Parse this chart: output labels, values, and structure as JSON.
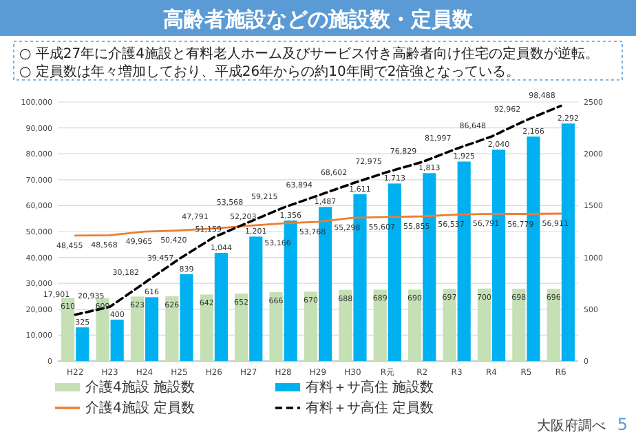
{
  "chart_data": {
    "type": "bar",
    "title": "高齢者施設などの施設数・定員数",
    "annotations": [
      "○ 平成27年に介護4施設と有料老人ホーム及びサービス付き高齢者向け住宅の定員数が逆転。",
      "○ 定員数は年々増加しており、平成26年からの約10年間で2倍強となっている。",
      "大阪府調べ",
      "5"
    ],
    "categories": [
      "H22",
      "H23",
      "H24",
      "H25",
      "H26",
      "H27",
      "H28",
      "H29",
      "H30",
      "R元",
      "R2",
      "R3",
      "R4",
      "R5",
      "R6"
    ],
    "series": [
      {
        "name": "介護4施設 施設数",
        "axis": "y2",
        "color": "#c5e0b4",
        "values": [
          610,
          609,
          623,
          626,
          642,
          652,
          666,
          670,
          688,
          689,
          690,
          697,
          700,
          698,
          696
        ],
        "value_labels": [
          "610",
          "609",
          "623",
          "626",
          "642",
          "652",
          "666",
          "670",
          "688",
          "689",
          "690",
          "697",
          "700",
          "698",
          "696"
        ]
      },
      {
        "name": "有料＋サ高住 施設数",
        "axis": "y2",
        "color": "#00b0f0",
        "values": [
          325,
          400,
          616,
          839,
          1044,
          1201,
          1356,
          1487,
          1611,
          1713,
          1813,
          1925,
          2040,
          2166,
          2292
        ],
        "value_labels": [
          "325",
          "400",
          "616",
          "839",
          "1,044",
          "1,201",
          "1,356",
          "1,487",
          "1,611",
          "1,713",
          "1,813",
          "1,925",
          "2,040",
          "2,166",
          "2,292"
        ]
      },
      {
        "name": "介護4施設 定員数",
        "type": "line",
        "color": "#ed7d31",
        "line_style": "solid",
        "values": [
          48455,
          48568,
          49965,
          50420,
          51159,
          52203,
          53166,
          53768,
          55298,
          55607,
          55855,
          56537,
          56791,
          56779,
          56911
        ],
        "value_labels": [
          "48,455",
          "48,568",
          "49,965",
          "50,420",
          "51,159",
          "52,203",
          "53,166",
          "53,768",
          "55,298",
          "55,607",
          "55,855",
          "56,537",
          "56,791",
          "56,779",
          "56,911"
        ]
      },
      {
        "name": "有料＋サ高住 定員数",
        "type": "line",
        "color": "#000000",
        "line_style": "dashed",
        "values": [
          17901,
          20935,
          30182,
          39457,
          47791,
          53568,
          59215,
          63894,
          68602,
          72975,
          76829,
          81997,
          86648,
          92962,
          98488
        ],
        "value_labels": [
          "17,901",
          "20,935",
          "30,182",
          "39,457",
          "47,791",
          "53,568",
          "59,215",
          "63,894",
          "68,602",
          "72,975",
          "76,829",
          "81,997",
          "86,648",
          "92,962",
          "98,488"
        ]
      }
    ],
    "ylim": [
      0,
      100000
    ],
    "yticks": [
      0,
      {
        "value": 10000,
        "label": "10,000"
      },
      {
        "value": 20000,
        "label": "20,000"
      },
      {
        "value": 30000,
        "label": "30,000"
      },
      {
        "value": 40000,
        "label": "40,000"
      },
      {
        "value": 50000,
        "label": "50,000"
      },
      {
        "value": 60000,
        "label": "60,000"
      },
      {
        "value": 70000,
        "label": "70,000"
      },
      {
        "value": 80000,
        "label": "80,000"
      },
      {
        "value": 90000,
        "label": "90,000"
      },
      {
        "value": 100000,
        "label": "100,000"
      }
    ],
    "y2lim": [
      0,
      2500
    ],
    "y2ticks": [
      0,
      500,
      1000,
      1500,
      2000,
      2500
    ],
    "grid": "y",
    "legend": "bottom",
    "marker": "none"
  }
}
